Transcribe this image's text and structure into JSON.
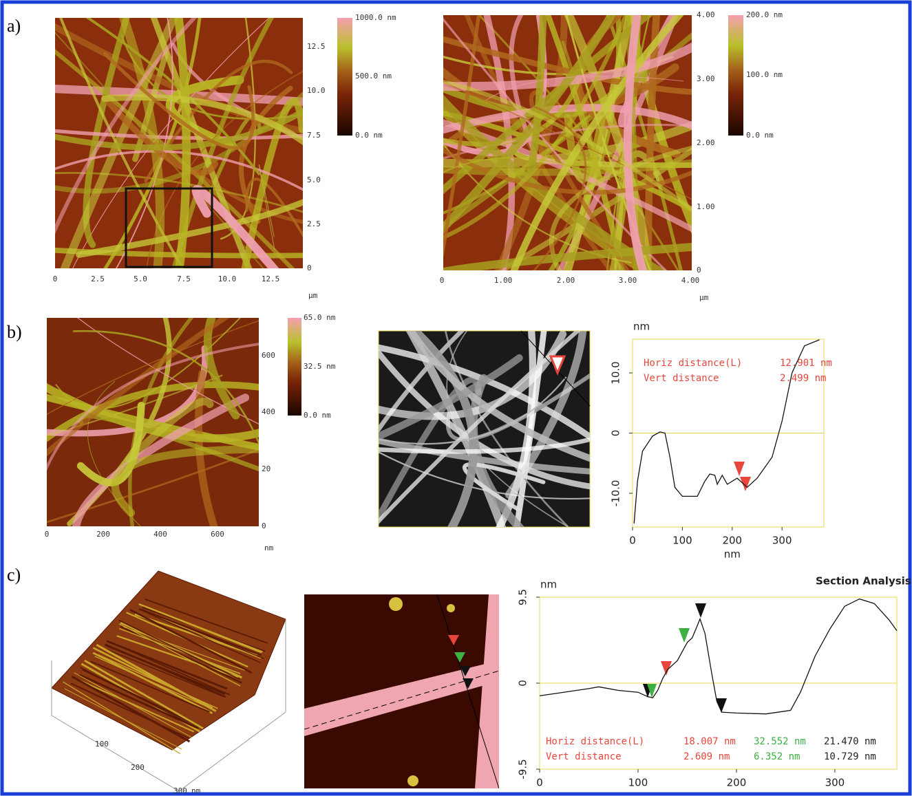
{
  "figure": {
    "a": {
      "label": "a)",
      "left": {
        "yticks": [
          "12.5",
          "10.0",
          "7.5",
          "5.0",
          "2.5",
          "0"
        ],
        "xticks": [
          "0",
          "2.5",
          "5.0",
          "7.5",
          "10.0",
          "12.5"
        ],
        "unit": "µm",
        "colorbar": [
          "1000.0 nm",
          "500.0 nm",
          "0.0 nm"
        ]
      },
      "right": {
        "yticks": [
          "4.00",
          "3.00",
          "2.00",
          "1.00",
          "0"
        ],
        "xticks": [
          "0",
          "1.00",
          "2.00",
          "3.00",
          "4.00"
        ],
        "unit": "µm",
        "colorbar": [
          "200.0 nm",
          "100.0 nm",
          "0.0 nm"
        ]
      }
    },
    "b": {
      "label": "b)",
      "image": {
        "yticks": [
          "600",
          "400",
          "20",
          "0"
        ],
        "xticks": [
          "0",
          "200",
          "400",
          "600"
        ],
        "unit": "nm",
        "colorbar": [
          "65.0 nm",
          "32.5 nm",
          "0.0 nm"
        ]
      }
    },
    "c": {
      "label": "c)",
      "image3d": {
        "ticks": [
          "100",
          "200",
          "300"
        ],
        "unit": "nm"
      }
    }
  },
  "chart_data": [
    {
      "type": "line",
      "ylabel": "nm",
      "xlabel": "nm",
      "color": "#111111",
      "xlim": [
        0,
        384
      ],
      "ylim": [
        -15.6,
        15.6
      ],
      "xticks": [
        0,
        100,
        200,
        300
      ],
      "yticks": [
        {
          "value": 10,
          "label": "10.0"
        },
        0,
        {
          "value": -10,
          "label": "-10.0"
        }
      ],
      "x": [
        3,
        10,
        20,
        40,
        55,
        65,
        75,
        85,
        100,
        130,
        145,
        155,
        165,
        170,
        180,
        190,
        210,
        230,
        250,
        280,
        300,
        320,
        345,
        375
      ],
      "values": [
        -15,
        -8,
        -3,
        -0.5,
        0.2,
        0,
        -4,
        -9,
        -10.5,
        -10.5,
        -8,
        -6.8,
        -7,
        -8.5,
        -7,
        -8.5,
        -7.5,
        -9,
        -7.5,
        -4,
        2,
        10,
        14.5,
        15.5
      ],
      "annotation_color": "#e8463c",
      "annotations": [
        [
          "Horiz distance(L)",
          "12.901 nm"
        ],
        [
          "Vert distance",
          "2.499 nm"
        ]
      ]
    },
    {
      "type": "line",
      "title": "Section Analysis",
      "ylabel": "nm",
      "color": "#111111",
      "xlim": [
        0,
        363
      ],
      "ylim": [
        -9.5,
        9.5
      ],
      "xticks": [
        0,
        100,
        200,
        300
      ],
      "yticks": [
        9.5,
        0,
        -9.5
      ],
      "x": [
        0,
        50,
        60,
        80,
        100,
        110,
        115,
        120,
        125,
        130,
        140,
        145,
        150,
        155,
        160,
        163,
        168,
        175,
        180,
        185,
        200,
        230,
        255,
        265,
        280,
        295,
        310,
        325,
        340,
        355,
        363
      ],
      "values": [
        -1.4,
        -0.6,
        -0.4,
        -0.8,
        -1,
        -1.5,
        -1.6,
        -0.8,
        0.5,
        1.5,
        2.5,
        3.5,
        4.5,
        5,
        6.3,
        7.1,
        5.5,
        1,
        -2,
        -3.2,
        -3.3,
        -3.4,
        -3,
        -1,
        3,
        6,
        8.5,
        9.3,
        8.8,
        7,
        5.8
      ],
      "annotation_colors": [
        "#e8463c",
        "#e8463c",
        "#3cb043",
        "#222222"
      ],
      "annotations": [
        [
          "Horiz distance(L)",
          "18.007 nm",
          "32.552 nm",
          "21.470 nm"
        ],
        [
          "Vert distance",
          "2.609 nm",
          "6.352 nm",
          "10.729 nm"
        ]
      ]
    }
  ]
}
